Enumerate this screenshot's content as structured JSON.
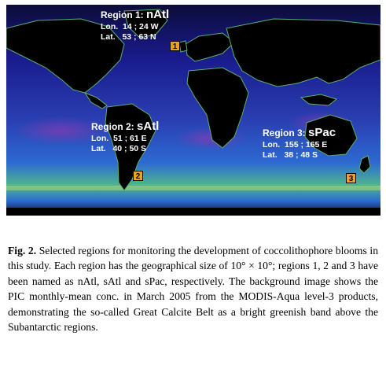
{
  "map": {
    "regions": [
      {
        "id": "1",
        "title": "Region 1:",
        "name": "nAtl",
        "lon_label": "Lon.",
        "lon": "14 ; 24 W",
        "lat_label": "Lat.",
        "lat": "53 ; 63 N"
      },
      {
        "id": "2",
        "title": "Region 2:",
        "name": "sAtl",
        "lon_label": "Lon.",
        "lon": "51 ; 61 E",
        "lat_label": "Lat.",
        "lat": "40 ; 50 S"
      },
      {
        "id": "3",
        "title": "Region 3:",
        "name": "sPac",
        "lon_label": "Lon.",
        "lon": "155 ; 165 E",
        "lat_label": "Lat.",
        "lat": "38 ; 48 S"
      }
    ],
    "colors": {
      "land": "#000000",
      "ocean_deep": "#1a1a8c",
      "ocean_mid": "#2c6ad2",
      "band_green": "#4fb98a",
      "bloom": "#e6e86a",
      "marker": "#f0a020"
    }
  },
  "caption": {
    "label": "Fig. 2.",
    "text": " Selected regions for monitoring the development of coccolithophore blooms in this study. Each region has the geographical size of 10° × 10°; regions 1, 2 and 3 have been named as nAtl, sAtl and sPac, respectively. The background image shows the PIC monthly-mean conc. in March 2005 from the MODIS-Aqua level-3 products, demonstrating the so-called Great Calcite Belt as a bright greenish band above the Subantarctic regions."
  }
}
